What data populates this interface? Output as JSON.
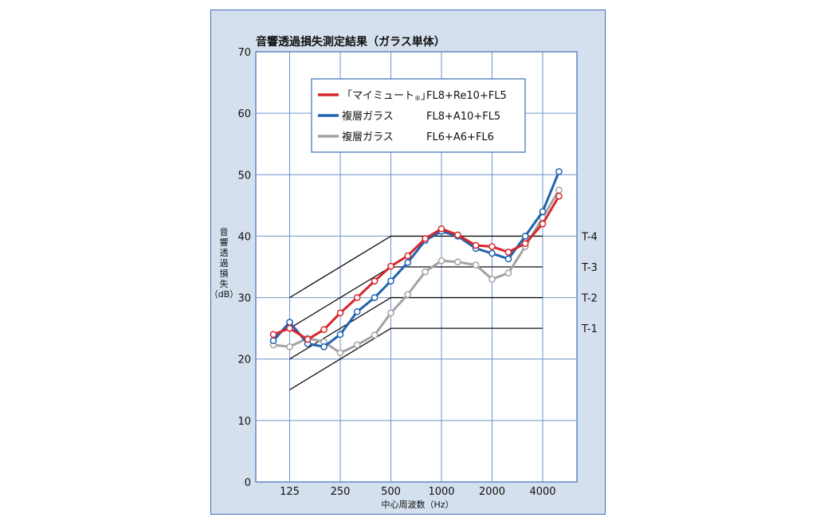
{
  "chart_data": {
    "type": "line",
    "title": "音響透過損失測定結果（ガラス単体）",
    "xlabel": "中心周波数（Hz）",
    "ylabel": [
      "音",
      "響",
      "透",
      "過",
      "損",
      "失",
      "（dB）"
    ],
    "ylim": [
      0,
      70
    ],
    "yticks": [
      0,
      10,
      20,
      30,
      40,
      50,
      60,
      70
    ],
    "x": [
      100,
      125,
      160,
      200,
      250,
      315,
      400,
      500,
      630,
      800,
      1000,
      1250,
      1600,
      2000,
      2500,
      3150,
      4000,
      5000
    ],
    "xtick_labels": [
      "125",
      "250",
      "500",
      "1000",
      "2000",
      "4000"
    ],
    "grid": true,
    "legend_position": "top-center",
    "series": [
      {
        "name_prefix": "「マイミュート",
        "name_suffix": "」",
        "name_mark": "®",
        "spec": "FL8+Re10+FL5",
        "color": "#d7262c",
        "values": [
          24,
          25,
          23.2,
          24.8,
          27.5,
          30,
          32.7,
          35.1,
          36.8,
          39.6,
          41.2,
          40.2,
          38.5,
          38.3,
          37.4,
          38.8,
          42,
          46.5
        ]
      },
      {
        "name": "複層ガラス",
        "spec": "FL8+A10+FL5",
        "color": "#1f63b0",
        "values": [
          23,
          26,
          22.5,
          22,
          24,
          27.7,
          30,
          32.7,
          35.7,
          39.3,
          40.8,
          40,
          38,
          37.2,
          36.3,
          40,
          44,
          50.5
        ]
      },
      {
        "name": "複層ガラス",
        "spec": "FL6+A6+FL6",
        "color": "#a3a3a3",
        "values": [
          22.3,
          22,
          23.4,
          22.8,
          21,
          22.3,
          23.9,
          27.5,
          30.5,
          34.2,
          36,
          35.8,
          35.3,
          33,
          34,
          38.3,
          43,
          47.5
        ]
      }
    ],
    "reference_curves": [
      {
        "label": "T-4",
        "values": [
          30,
          40
        ]
      },
      {
        "label": "T-3",
        "values": [
          25,
          35
        ]
      },
      {
        "label": "T-2",
        "values": [
          20,
          30
        ]
      },
      {
        "label": "T-1",
        "values": [
          15,
          25
        ]
      }
    ],
    "reference_curve_frequencies": [
      125,
      500,
      4000
    ]
  }
}
